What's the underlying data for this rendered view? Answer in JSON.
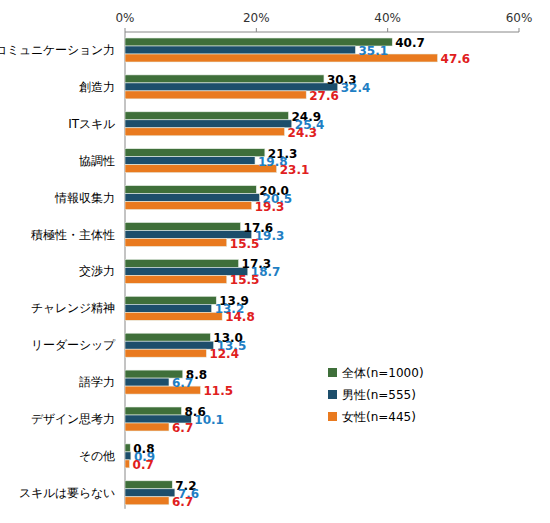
{
  "chart_data": {
    "type": "bar",
    "orientation": "horizontal",
    "categories": [
      "コミュニケーション力",
      "創造力",
      "ITスキル",
      "協調性",
      "情報収集力",
      "積極性・主体性",
      "交渉力",
      "チャレンジ精神",
      "リーダーシップ",
      "語学力",
      "デザイン思考力",
      "その他",
      "スキルは要らない"
    ],
    "series": [
      {
        "name": "全体(n=1000)",
        "color": "#3f6f3a",
        "values": [
          40.7,
          30.3,
          24.9,
          21.3,
          20.0,
          17.6,
          17.3,
          13.9,
          13.0,
          8.8,
          8.6,
          0.8,
          7.2
        ],
        "value_labels": [
          "40.7",
          "30.3",
          "24.9",
          "21.3",
          "20.0",
          "17.6",
          "17.3",
          "13.9",
          "13.0",
          "8.8",
          "8.6",
          "0.8",
          "7.2"
        ]
      },
      {
        "name": "男性(n=555)",
        "color": "#1d4e6b",
        "values": [
          35.1,
          32.4,
          25.4,
          19.8,
          20.5,
          19.3,
          18.7,
          13.2,
          13.5,
          6.7,
          10.1,
          0.9,
          7.6
        ],
        "value_labels": [
          "35.1",
          "32.4",
          "25.4",
          "19.8",
          "20.5",
          "19.3",
          "18.7",
          "13.2",
          "13.5",
          "6.7",
          "10.1",
          "0.9",
          "7.6"
        ]
      },
      {
        "name": "女性(n=445)",
        "color": "#e97a1f",
        "values": [
          47.6,
          27.6,
          24.3,
          23.1,
          19.3,
          15.5,
          15.5,
          14.8,
          12.4,
          11.5,
          6.7,
          0.7,
          6.7
        ],
        "value_labels": [
          "47.6",
          "27.6",
          "24.3",
          "23.1",
          "19.3",
          "15.5",
          "15.5",
          "14.8",
          "12.4",
          "11.5",
          "6.7",
          "0.7",
          "6.7"
        ]
      }
    ],
    "xlim": [
      0,
      60
    ],
    "xticks": [
      {
        "value": 0,
        "label": "0%"
      },
      {
        "value": 20,
        "label": "20%"
      },
      {
        "value": 40,
        "label": "40%"
      },
      {
        "value": 60,
        "label": "60%"
      }
    ],
    "grid": false,
    "legend": "lower right",
    "data_labels": true
  }
}
